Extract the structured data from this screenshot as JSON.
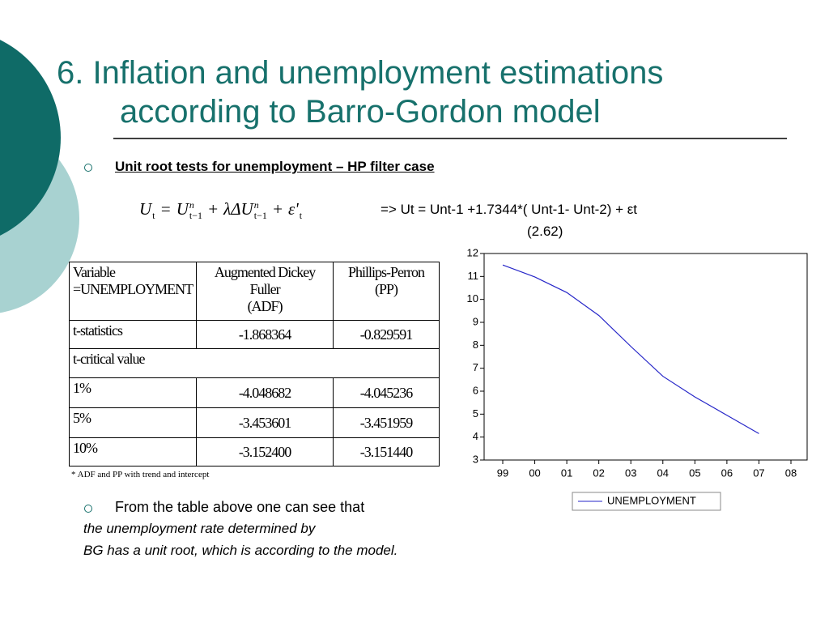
{
  "title": {
    "line1": "6. Inflation and unemployment estimations",
    "line2": "according to Barro-Gordon model"
  },
  "subheading": "Unit root tests for unemployment – HP filter case",
  "equation": {
    "tokens": [
      {
        "t": "U",
        "sub": "t"
      },
      {
        "t": "="
      },
      {
        "t": "U",
        "sup": "n",
        "sub": "t−1"
      },
      {
        "t": "+"
      },
      {
        "t": "λΔU",
        "sup": "n",
        "sub": "t−1"
      },
      {
        "t": "+"
      },
      {
        "t": "ε'",
        "sub": "t"
      }
    ],
    "result": "=> Ut = Unt-1 +1.7344*( Unt-1- Unt-2) + εt",
    "note": "(2.62)"
  },
  "table": {
    "header": [
      [
        "Variable",
        "=UNEMPLOYMENT"
      ],
      [
        "Augmented Dickey Fuller",
        "(ADF)"
      ],
      [
        "Phillips-Perron (PP)"
      ]
    ],
    "rows": [
      [
        "t-statistics",
        "-1.868364",
        "-0.829591"
      ],
      [
        "t-critical value"
      ],
      [
        "1%",
        "-4.048682",
        "-4.045236"
      ],
      [
        "5%",
        "-3.453601",
        "-3.451959"
      ],
      [
        "10%",
        "-3.152400",
        "-3.151440"
      ]
    ],
    "footnote": "* ADF and PP with trend and intercept"
  },
  "body": {
    "bullet": "From the table above one can see that",
    "lines": [
      "the unemployment rate determined by",
      "BG has a unit root, which is according to the model."
    ]
  },
  "chart_data": {
    "type": "line",
    "categories": [
      "99",
      "00",
      "01",
      "02",
      "03",
      "04",
      "05",
      "06",
      "07",
      "08"
    ],
    "series": [
      {
        "name": "UNEMPLOYMENT",
        "color": "#2626c8",
        "values": [
          11.5,
          10.98,
          10.3,
          9.3,
          7.95,
          6.65,
          5.75,
          4.95,
          4.15,
          null
        ]
      }
    ],
    "ylim": [
      3,
      12
    ],
    "yticks": [
      3,
      4,
      5,
      6,
      7,
      8,
      9,
      10,
      11,
      12
    ]
  }
}
